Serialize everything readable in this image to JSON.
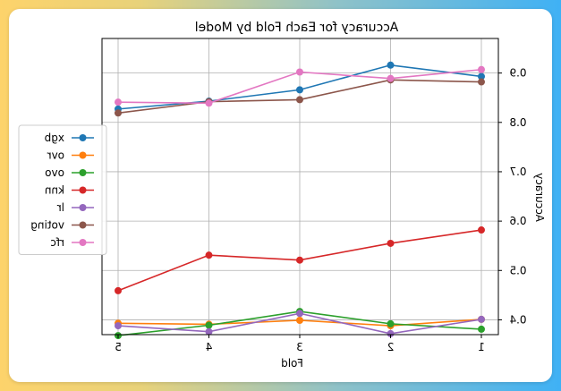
{
  "chart_data": {
    "type": "line",
    "title": "Accuracy for Each Fold by Model",
    "xlabel": "Fold",
    "ylabel": "Accuracy",
    "x": [
      1,
      2,
      3,
      4,
      5
    ],
    "x_tick_labels": [
      "1",
      "2",
      "3",
      "4",
      "5"
    ],
    "x_axis_reversed": true,
    "ylim": [
      0.37,
      0.97
    ],
    "y_ticks": [
      0.4,
      0.5,
      0.6,
      0.7,
      0.8,
      0.9
    ],
    "y_tick_labels": [
      "0.4",
      "0.5",
      "0.6",
      "0.7",
      "0.8",
      "0.9"
    ],
    "y_axis_side": "right",
    "grid": true,
    "legend_position": "left",
    "image_mirrored": true,
    "series": [
      {
        "name": "xgb",
        "color": "#1f77b4",
        "values": [
          0.893,
          0.916,
          0.866,
          0.843,
          0.827
        ]
      },
      {
        "name": "ovr",
        "color": "#ff7f0e",
        "values": [
          0.401,
          0.388,
          0.399,
          0.391,
          0.393
        ]
      },
      {
        "name": "ovo",
        "color": "#2ca02c",
        "values": [
          0.381,
          0.392,
          0.417,
          0.389,
          0.368
        ]
      },
      {
        "name": "knn",
        "color": "#d62728",
        "values": [
          0.582,
          0.555,
          0.521,
          0.531,
          0.459
        ]
      },
      {
        "name": "lr",
        "color": "#9467bd",
        "values": [
          0.401,
          0.372,
          0.413,
          0.376,
          0.388
        ]
      },
      {
        "name": "voting",
        "color": "#8c564b",
        "values": [
          0.882,
          0.886,
          0.846,
          0.842,
          0.819
        ]
      },
      {
        "name": "rfc",
        "color": "#e377c2",
        "values": [
          0.907,
          0.889,
          0.902,
          0.839,
          0.841
        ]
      }
    ]
  }
}
